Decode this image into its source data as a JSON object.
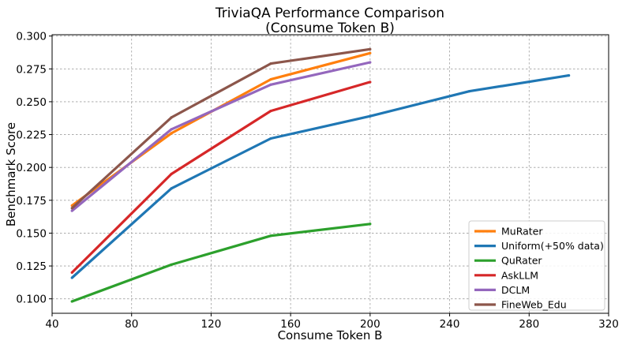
{
  "chart_data": {
    "type": "line",
    "title": "TriviaQA Performance Comparison",
    "subtitle": "(Consume Token B)",
    "xlabel": "Consume Token B",
    "ylabel": "Benchmark Score",
    "xlim": [
      40,
      320
    ],
    "ylim": [
      0.089,
      0.301
    ],
    "xticks": [
      40,
      80,
      120,
      160,
      200,
      240,
      280,
      320
    ],
    "xtick_labels": [
      "40",
      "80",
      "120",
      "160",
      "200",
      "240",
      "280",
      "320"
    ],
    "yticks": [
      0.1,
      0.125,
      0.15,
      0.175,
      0.2,
      0.225,
      0.25,
      0.275,
      0.3
    ],
    "ytick_labels": [
      "0.100",
      "0.125",
      "0.150",
      "0.175",
      "0.200",
      "0.225",
      "0.250",
      "0.275",
      "0.300"
    ],
    "grid": true,
    "legend_position": "bottom-right",
    "series": [
      {
        "name": "MuRater",
        "color": "#ff7f0e",
        "x": [
          50,
          100,
          150,
          200
        ],
        "y": [
          0.171,
          0.226,
          0.267,
          0.287
        ]
      },
      {
        "name": "Uniform(+50% data)",
        "color": "#1f77b4",
        "x": [
          50,
          100,
          150,
          200,
          250,
          300
        ],
        "y": [
          0.116,
          0.184,
          0.222,
          0.239,
          0.258,
          0.27
        ]
      },
      {
        "name": "QuRater",
        "color": "#2ca02c",
        "x": [
          50,
          100,
          150,
          200
        ],
        "y": [
          0.098,
          0.126,
          0.148,
          0.157
        ]
      },
      {
        "name": "AskLLM",
        "color": "#d62728",
        "x": [
          50,
          100,
          150,
          200
        ],
        "y": [
          0.12,
          0.195,
          0.243,
          0.265
        ]
      },
      {
        "name": "DCLM",
        "color": "#9467bd",
        "x": [
          50,
          100,
          150,
          200
        ],
        "y": [
          0.167,
          0.229,
          0.263,
          0.28
        ]
      },
      {
        "name": "FineWeb_Edu",
        "color": "#8c564b",
        "x": [
          50,
          100,
          150,
          200
        ],
        "y": [
          0.169,
          0.238,
          0.279,
          0.29
        ]
      }
    ]
  }
}
